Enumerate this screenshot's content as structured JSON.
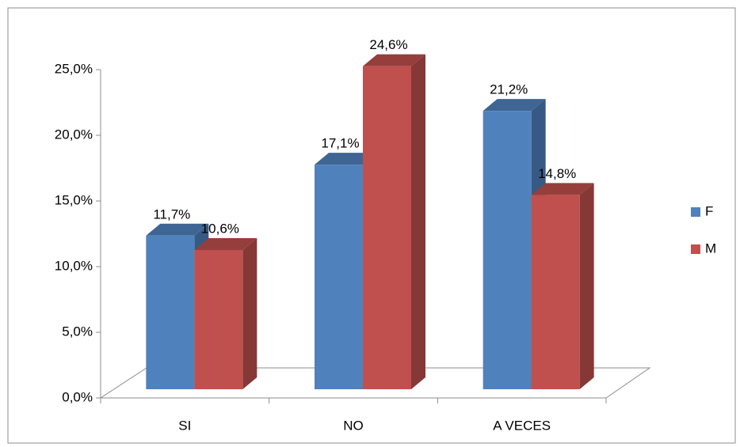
{
  "chart_data": {
    "type": "bar3d",
    "categories": [
      "SI",
      "NO",
      "A VECES"
    ],
    "series": [
      {
        "name": "F",
        "color": "#4f81bd",
        "values": [
          11.7,
          17.1,
          21.2
        ],
        "value_labels": [
          "11,7%",
          "17,1%",
          "21,2%"
        ]
      },
      {
        "name": "M",
        "color": "#c0504d",
        "values": [
          10.6,
          24.6,
          14.8
        ],
        "value_labels": [
          "10,6%",
          "24,6%",
          "14,8%"
        ]
      }
    ],
    "ylim": [
      0,
      25
    ],
    "yticks": [
      {
        "value": 0,
        "label": "0,0%"
      },
      {
        "value": 5,
        "label": "5,0%"
      },
      {
        "value": 10,
        "label": "10,0%"
      },
      {
        "value": 15,
        "label": "15,0%"
      },
      {
        "value": 20,
        "label": "20,0%"
      },
      {
        "value": 25,
        "label": "25,0%"
      }
    ],
    "legend": "right"
  }
}
